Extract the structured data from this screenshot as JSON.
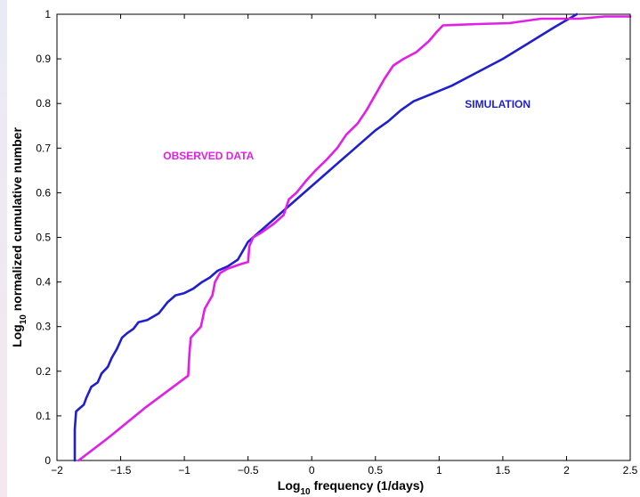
{
  "chart_data": {
    "type": "line",
    "title": "",
    "xlabel": {
      "prefix": "Log",
      "sub": "10",
      "rest": " frequency (1/days)"
    },
    "ylabel": {
      "prefix": "Log",
      "sub": "10",
      "rest": " normalized cumulative number"
    },
    "xlim": [
      -2,
      2.5
    ],
    "ylim": [
      0,
      1
    ],
    "x_ticks": [
      -2,
      -1.5,
      -1,
      -0.5,
      0,
      0.5,
      1,
      1.5,
      2,
      2.5
    ],
    "x_tick_labels": [
      "−2",
      "−1.5",
      "−1",
      "−0.5",
      "0",
      "0.5",
      "1",
      "1.5",
      "2",
      "2.5"
    ],
    "y_ticks": [
      0,
      0.1,
      0.2,
      0.3,
      0.4,
      0.5,
      0.6,
      0.7,
      0.8,
      0.9,
      1
    ],
    "y_tick_labels": [
      "0",
      "0.1",
      "0.2",
      "0.3",
      "0.4",
      "0.5",
      "0.6",
      "0.7",
      "0.8",
      "0.9",
      "1"
    ],
    "grid": false,
    "series": [
      {
        "name": "SIMULATION",
        "color": "#1f1fd0",
        "points": [
          [
            -1.86,
            0.0
          ],
          [
            -1.86,
            0.07
          ],
          [
            -1.85,
            0.11
          ],
          [
            -1.79,
            0.125
          ],
          [
            -1.77,
            0.14
          ],
          [
            -1.73,
            0.165
          ],
          [
            -1.68,
            0.175
          ],
          [
            -1.65,
            0.195
          ],
          [
            -1.6,
            0.21
          ],
          [
            -1.57,
            0.23
          ],
          [
            -1.53,
            0.25
          ],
          [
            -1.49,
            0.275
          ],
          [
            -1.45,
            0.285
          ],
          [
            -1.4,
            0.295
          ],
          [
            -1.36,
            0.31
          ],
          [
            -1.29,
            0.315
          ],
          [
            -1.2,
            0.33
          ],
          [
            -1.13,
            0.355
          ],
          [
            -1.07,
            0.37
          ],
          [
            -1.0,
            0.375
          ],
          [
            -0.93,
            0.385
          ],
          [
            -0.86,
            0.4
          ],
          [
            -0.8,
            0.41
          ],
          [
            -0.74,
            0.425
          ],
          [
            -0.66,
            0.435
          ],
          [
            -0.58,
            0.45
          ],
          [
            -0.5,
            0.49
          ],
          [
            -0.42,
            0.51
          ],
          [
            -0.3,
            0.54
          ],
          [
            -0.2,
            0.565
          ],
          [
            -0.1,
            0.59
          ],
          [
            0.0,
            0.615
          ],
          [
            0.1,
            0.64
          ],
          [
            0.2,
            0.665
          ],
          [
            0.3,
            0.69
          ],
          [
            0.4,
            0.715
          ],
          [
            0.5,
            0.74
          ],
          [
            0.6,
            0.76
          ],
          [
            0.7,
            0.785
          ],
          [
            0.8,
            0.805
          ],
          [
            0.93,
            0.82
          ],
          [
            1.1,
            0.84
          ],
          [
            1.3,
            0.87
          ],
          [
            1.5,
            0.9
          ],
          [
            1.7,
            0.935
          ],
          [
            1.9,
            0.97
          ],
          [
            2.08,
            1.0
          ]
        ]
      },
      {
        "name": "OBSERVED DATA",
        "color": "#e21ee8",
        "points": [
          [
            -1.83,
            0.0
          ],
          [
            -1.6,
            0.05
          ],
          [
            -1.3,
            0.12
          ],
          [
            -0.97,
            0.19
          ],
          [
            -0.96,
            0.24
          ],
          [
            -0.95,
            0.275
          ],
          [
            -0.87,
            0.3
          ],
          [
            -0.84,
            0.34
          ],
          [
            -0.78,
            0.37
          ],
          [
            -0.76,
            0.4
          ],
          [
            -0.72,
            0.42
          ],
          [
            -0.66,
            0.43
          ],
          [
            -0.56,
            0.44
          ],
          [
            -0.5,
            0.445
          ],
          [
            -0.49,
            0.48
          ],
          [
            -0.46,
            0.5
          ],
          [
            -0.4,
            0.51
          ],
          [
            -0.3,
            0.53
          ],
          [
            -0.22,
            0.55
          ],
          [
            -0.18,
            0.585
          ],
          [
            -0.12,
            0.6
          ],
          [
            -0.05,
            0.625
          ],
          [
            0.03,
            0.65
          ],
          [
            0.12,
            0.675
          ],
          [
            0.2,
            0.7
          ],
          [
            0.27,
            0.73
          ],
          [
            0.36,
            0.755
          ],
          [
            0.43,
            0.785
          ],
          [
            0.5,
            0.82
          ],
          [
            0.57,
            0.855
          ],
          [
            0.64,
            0.885
          ],
          [
            0.72,
            0.9
          ],
          [
            0.82,
            0.915
          ],
          [
            0.92,
            0.94
          ],
          [
            0.98,
            0.96
          ],
          [
            1.03,
            0.975
          ],
          [
            1.3,
            0.978
          ],
          [
            1.55,
            0.98
          ],
          [
            1.8,
            0.99
          ],
          [
            2.1,
            0.99
          ],
          [
            2.3,
            0.995
          ],
          [
            2.5,
            0.995
          ]
        ]
      }
    ],
    "annotations": [
      {
        "text": "OBSERVED DATA",
        "x": -0.81,
        "y": 0.675,
        "color": "#e21ee8"
      },
      {
        "text": "SIMULATION",
        "x": 1.46,
        "y": 0.79,
        "color": "#1f1fd0"
      }
    ]
  }
}
